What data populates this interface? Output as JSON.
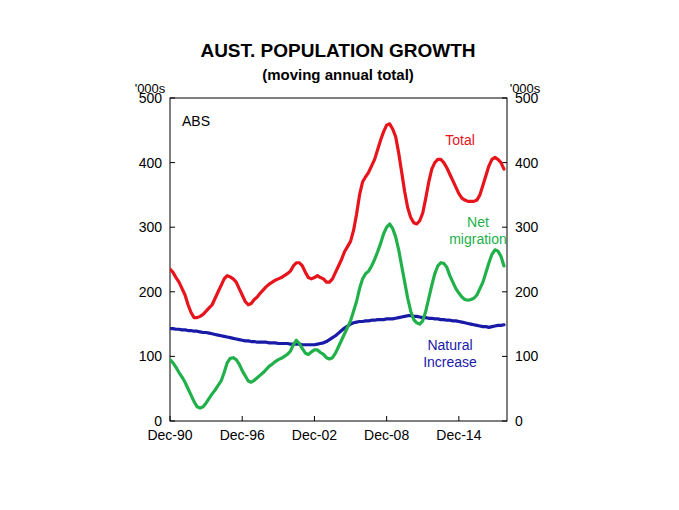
{
  "chart_data": {
    "type": "line",
    "title": "AUST. POPULATION GROWTH",
    "subtitle": "(moving annual total)",
    "y_label": "'000s",
    "y2_label": "'000s",
    "annotations": [
      "ABS"
    ],
    "categories": [
      "Dec-90",
      null,
      null,
      null,
      null,
      null,
      null,
      null,
      null,
      null,
      null,
      null,
      null,
      null,
      null,
      null,
      null,
      null,
      null,
      null,
      null,
      null,
      null,
      null,
      "Dec-96",
      null,
      null,
      null,
      null,
      null,
      null,
      null,
      null,
      null,
      null,
      null,
      null,
      null,
      null,
      null,
      null,
      null,
      null,
      null,
      null,
      null,
      null,
      null,
      "Dec-02",
      null,
      null,
      null,
      null,
      null,
      null,
      null,
      null,
      null,
      null,
      null,
      null,
      null,
      null,
      null,
      null,
      null,
      null,
      null,
      null,
      null,
      null,
      null,
      "Dec-08",
      null,
      null,
      null,
      null,
      null,
      null,
      null,
      null,
      null,
      null,
      null,
      null,
      null,
      null,
      null,
      null,
      null,
      null,
      null,
      null,
      null,
      null,
      null,
      "Dec-14",
      null,
      null,
      null,
      null,
      null,
      null,
      null,
      null,
      null,
      null,
      null,
      null,
      null,
      null,
      null
    ],
    "series": [
      {
        "name": "Total",
        "color": "#e8141c",
        "values": [
          235,
          230,
          222,
          215,
          205,
          195,
          180,
          168,
          160,
          160,
          162,
          165,
          170,
          175,
          180,
          190,
          200,
          210,
          220,
          225,
          223,
          220,
          215,
          205,
          195,
          185,
          180,
          182,
          188,
          192,
          198,
          203,
          208,
          212,
          215,
          218,
          220,
          222,
          225,
          228,
          232,
          240,
          245,
          245,
          240,
          230,
          222,
          220,
          222,
          225,
          222,
          220,
          215,
          215,
          220,
          230,
          240,
          250,
          262,
          270,
          278,
          295,
          320,
          350,
          370,
          378,
          385,
          395,
          405,
          420,
          435,
          448,
          458,
          460,
          452,
          440,
          415,
          385,
          355,
          330,
          315,
          307,
          305,
          310,
          322,
          345,
          370,
          390,
          400,
          405,
          405,
          400,
          392,
          382,
          372,
          362,
          352,
          345,
          342,
          340,
          340,
          340,
          342,
          350,
          365,
          380,
          395,
          405,
          408,
          405,
          400,
          390
        ]
      },
      {
        "name": "Net migration",
        "color": "#22b04a",
        "values": [
          95,
          90,
          83,
          75,
          68,
          60,
          50,
          40,
          30,
          22,
          20,
          22,
          28,
          35,
          42,
          48,
          55,
          62,
          75,
          90,
          97,
          98,
          95,
          88,
          78,
          70,
          62,
          60,
          63,
          67,
          71,
          75,
          80,
          85,
          88,
          92,
          95,
          97,
          100,
          103,
          108,
          118,
          125,
          120,
          112,
          105,
          103,
          107,
          110,
          110,
          106,
          103,
          98,
          96,
          98,
          105,
          115,
          125,
          135,
          145,
          155,
          170,
          185,
          205,
          220,
          228,
          232,
          240,
          250,
          262,
          275,
          290,
          300,
          305,
          298,
          285,
          265,
          240,
          215,
          190,
          170,
          157,
          152,
          150,
          155,
          170,
          190,
          210,
          228,
          240,
          245,
          244,
          238,
          225,
          215,
          205,
          198,
          192,
          188,
          187,
          188,
          190,
          195,
          205,
          215,
          230,
          245,
          258,
          265,
          263,
          255,
          240
        ]
      },
      {
        "name": "Natural Increase",
        "color": "#1a1aa8",
        "values": [
          143,
          143,
          142,
          142,
          141,
          141,
          140,
          140,
          139,
          139,
          138,
          137,
          137,
          136,
          135,
          134,
          133,
          132,
          131,
          130,
          129,
          128,
          127,
          126,
          125,
          124,
          124,
          123,
          123,
          122,
          122,
          122,
          122,
          121,
          121,
          121,
          120,
          120,
          120,
          120,
          119,
          119,
          119,
          119,
          118,
          118,
          118,
          118,
          118,
          119,
          120,
          121,
          123,
          126,
          129,
          132,
          136,
          140,
          144,
          147,
          150,
          152,
          153,
          154,
          154,
          155,
          155,
          156,
          156,
          157,
          157,
          157,
          158,
          158,
          158,
          159,
          160,
          161,
          162,
          163,
          163,
          162,
          162,
          161,
          160,
          160,
          159,
          159,
          158,
          158,
          157,
          157,
          156,
          156,
          155,
          155,
          154,
          153,
          152,
          151,
          150,
          149,
          148,
          147,
          146,
          146,
          145,
          146,
          147,
          148,
          148,
          149
        ]
      }
    ],
    "ylim": [
      0,
      500
    ],
    "yticks": [
      0,
      100,
      200,
      300,
      400,
      500
    ],
    "y2lim": [
      0,
      500
    ],
    "y2ticks": [
      0,
      100,
      200,
      300,
      400,
      500
    ],
    "grid": false
  }
}
